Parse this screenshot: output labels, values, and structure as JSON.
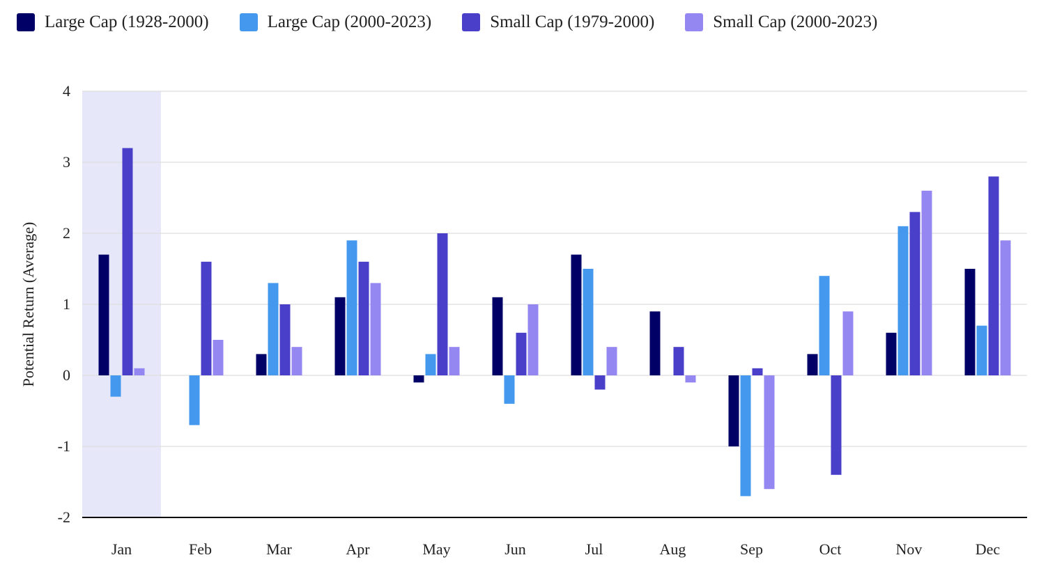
{
  "chart_data": {
    "type": "bar",
    "title": "",
    "xlabel": "",
    "ylabel": "Potential Return (Average)",
    "ylim": [
      -2,
      4
    ],
    "yticks": [
      -2,
      -1,
      0,
      1,
      2,
      3,
      4
    ],
    "grid": true,
    "legend_position": "top-left",
    "highlighted_category": "Jan",
    "highlight_color": "#e6e8f9",
    "categories": [
      "Jan",
      "Feb",
      "Mar",
      "Apr",
      "May",
      "Jun",
      "Jul",
      "Aug",
      "Sep",
      "Oct",
      "Nov",
      "Dec"
    ],
    "series": [
      {
        "name": "Large Cap (1928-2000)",
        "color": "#000066",
        "values": [
          1.7,
          0,
          0.3,
          1.1,
          -0.1,
          1.1,
          1.7,
          0.9,
          -1.0,
          0.3,
          0.6,
          1.5
        ]
      },
      {
        "name": "Large Cap (2000-2023)",
        "color": "#4499ee",
        "values": [
          -0.3,
          -0.7,
          1.3,
          1.9,
          0.3,
          -0.4,
          1.5,
          0,
          -1.7,
          1.4,
          2.1,
          0.7
        ]
      },
      {
        "name": "Small Cap (1979-2000)",
        "color": "#4a3fc9",
        "values": [
          3.2,
          1.6,
          1.0,
          1.6,
          2.0,
          0.6,
          -0.2,
          0.4,
          0.1,
          -1.4,
          2.3,
          2.8
        ]
      },
      {
        "name": "Small Cap (2000-2023)",
        "color": "#9487f2",
        "values": [
          0.1,
          0.5,
          0.4,
          1.3,
          0.4,
          1.0,
          0.4,
          -0.1,
          -1.6,
          0.9,
          2.6,
          1.9
        ]
      }
    ]
  }
}
